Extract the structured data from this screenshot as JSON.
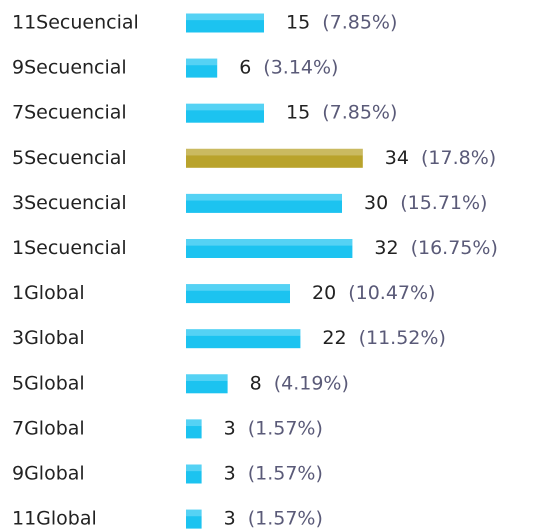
{
  "chart_data": {
    "type": "bar",
    "categories": [
      "11Secuencial",
      "9Secuencial",
      "7Secuencial",
      "5Secuencial",
      "3Secuencial",
      "1Secuencial",
      "1Global",
      "3Global",
      "5Global",
      "7Global",
      "9Global",
      "11Global"
    ],
    "values": [
      15,
      6,
      15,
      34,
      30,
      32,
      20,
      22,
      8,
      3,
      3,
      3
    ],
    "percent_labels": [
      "(7.85%)",
      "(3.14%)",
      "(7.85%)",
      "(17.8%)",
      "(15.71%)",
      "(16.75%)",
      "(10.47%)",
      "(11.52%)",
      "(4.19%)",
      "(1.57%)",
      "(1.57%)",
      "(1.57%)"
    ],
    "colors": [
      "#1cc3f0",
      "#1cc3f0",
      "#1cc3f0",
      "#b9a32c",
      "#1cc3f0",
      "#1cc3f0",
      "#1cc3f0",
      "#1cc3f0",
      "#1cc3f0",
      "#1cc3f0",
      "#1cc3f0",
      "#1cc3f0"
    ]
  }
}
